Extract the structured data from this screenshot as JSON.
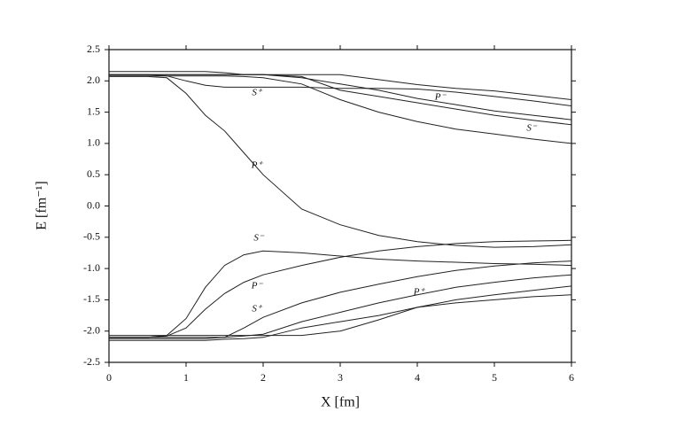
{
  "chart_data": {
    "type": "line",
    "xlabel": "X [fm]",
    "ylabel": "E [fm⁻¹]",
    "color": "#222222",
    "x": [
      0,
      0.5,
      0.75,
      1,
      1.25,
      1.5,
      1.75,
      2,
      2.5,
      3,
      3.5,
      4,
      4.5,
      5,
      5.5,
      6
    ],
    "series": [
      {
        "values": [
          2.07,
          2.07,
          2.05,
          1.8,
          1.45,
          1.2,
          0.85,
          0.5,
          -0.05,
          -0.3,
          -0.47,
          -0.57,
          -0.63,
          -0.66,
          -0.65,
          -0.62
        ]
      },
      {
        "values": [
          2.15,
          2.15,
          2.15,
          2.15,
          2.15,
          2.13,
          2.1,
          2.1,
          2.1,
          2.1,
          2.02,
          1.94,
          1.88,
          1.84,
          1.77,
          1.7
        ]
      },
      {
        "values": [
          2.1,
          2.1,
          2.08,
          2.0,
          1.93,
          1.9,
          1.9,
          1.9,
          1.9,
          1.88,
          1.88,
          1.87,
          1.82,
          1.75,
          1.68,
          1.6
        ]
      },
      {
        "values": [
          2.1,
          2.1,
          2.1,
          2.1,
          2.1,
          2.1,
          2.1,
          2.1,
          2.05,
          1.95,
          1.85,
          1.72,
          1.62,
          1.52,
          1.45,
          1.38
        ]
      },
      {
        "values": [
          2.08,
          2.08,
          2.08,
          2.08,
          2.08,
          2.08,
          2.07,
          2.05,
          1.95,
          1.7,
          1.5,
          1.35,
          1.23,
          1.15,
          1.07,
          1.0
        ]
      },
      {
        "values": [
          2.1,
          2.1,
          2.1,
          2.1,
          2.1,
          2.1,
          2.1,
          2.1,
          2.07,
          1.85,
          1.75,
          1.65,
          1.55,
          1.45,
          1.37,
          1.3
        ]
      },
      {
        "values": [
          -2.1,
          -2.1,
          -2.07,
          -1.8,
          -1.3,
          -0.95,
          -0.78,
          -0.72,
          -0.75,
          -0.8,
          -0.85,
          -0.88,
          -0.9,
          -0.92,
          -0.93,
          -0.95
        ]
      },
      {
        "values": [
          -2.1,
          -2.1,
          -2.08,
          -1.95,
          -1.65,
          -1.4,
          -1.22,
          -1.1,
          -0.95,
          -0.82,
          -0.72,
          -0.65,
          -0.6,
          -0.57,
          -0.56,
          -0.55
        ]
      },
      {
        "values": [
          -2.1,
          -2.1,
          -2.1,
          -2.1,
          -2.1,
          -2.1,
          -1.95,
          -1.78,
          -1.55,
          -1.38,
          -1.25,
          -1.13,
          -1.03,
          -0.96,
          -0.91,
          -0.88
        ]
      },
      {
        "values": [
          -2.12,
          -2.12,
          -2.12,
          -2.12,
          -2.12,
          -2.1,
          -2.08,
          -2.05,
          -1.85,
          -1.7,
          -1.55,
          -1.42,
          -1.3,
          -1.22,
          -1.15,
          -1.1
        ]
      },
      {
        "values": [
          -2.07,
          -2.07,
          -2.07,
          -2.07,
          -2.07,
          -2.07,
          -2.07,
          -2.07,
          -2.07,
          -2.0,
          -1.82,
          -1.62,
          -1.5,
          -1.42,
          -1.35,
          -1.28
        ]
      },
      {
        "values": [
          -2.15,
          -2.15,
          -2.15,
          -2.15,
          -2.15,
          -2.13,
          -2.12,
          -2.1,
          -1.95,
          -1.85,
          -1.75,
          -1.62,
          -1.55,
          -1.5,
          -1.45,
          -1.42
        ]
      }
    ],
    "annotations": [
      "S⁺",
      "P⁻",
      "S⁻",
      "P⁺",
      "S⁻",
      "P⁻",
      "S⁺",
      "P⁺"
    ],
    "xlim": [
      0,
      6
    ],
    "xticks": [
      0,
      1,
      2,
      3,
      4,
      5,
      6
    ],
    "ylim": [
      -2.5,
      2.5
    ],
    "yticks": [
      -2.5,
      {
        "value": -2,
        "label": "-2.0"
      },
      -1.5,
      {
        "value": -1,
        "label": "-1.0"
      },
      -0.5,
      {
        "value": 0,
        "label": "0.0"
      },
      0.5,
      {
        "value": 1,
        "label": "1.0"
      },
      1.5,
      {
        "value": 2,
        "label": "2.0"
      },
      2.5
    ]
  }
}
